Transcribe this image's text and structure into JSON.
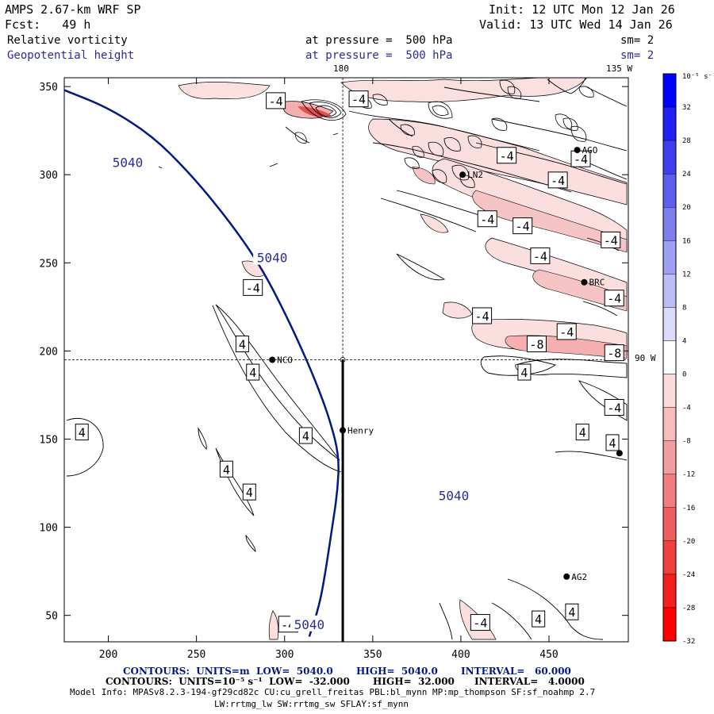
{
  "header": {
    "model": "AMPS 2.67-km WRF SP",
    "init": "Init: 12 UTC Mon 12 Jan 26",
    "fcst": "Fcst:   49 h",
    "valid": "Valid: 13 UTC Wed 14 Jan 26",
    "field1_name": "Relative vorticity",
    "field1_level": "at pressure =  500 hPa",
    "field1_sm": "sm= 2",
    "field2_name": "Geopotential height",
    "field2_level": "at pressure =  500 hPa",
    "field2_sm": "sm= 2"
  },
  "map_labels": {
    "lon_180": "180",
    "lon_135w": "135 W",
    "lon_90w": "90 W"
  },
  "colorbar": {
    "unit": "10⁻⁵ s⁻¹",
    "ticks": [
      32,
      28,
      24,
      20,
      16,
      12,
      8,
      4,
      0,
      -4,
      -8,
      -12,
      -16,
      -20,
      -24,
      -28,
      -32
    ],
    "colors": [
      "#0000ff",
      "#1f1ff6",
      "#3f3ff0",
      "#5e5eec",
      "#7e7eee",
      "#9e9ef2",
      "#bcbcf6",
      "#dadafb",
      "#ffffff",
      "#fbdada",
      "#f7bcbc",
      "#f39e9e",
      "#f07e7e",
      "#ee5e5e",
      "#f03f3f",
      "#f61f1f",
      "#ff0000"
    ]
  },
  "stations": [
    {
      "name": "AGO",
      "x": 466,
      "y": 314
    },
    {
      "name": "LN2",
      "x": 401,
      "y": 300
    },
    {
      "name": "BRC",
      "x": 470,
      "y": 239
    },
    {
      "name": "NCO",
      "x": 293,
      "y": 195
    },
    {
      "name": "Henry",
      "x": 333,
      "y": 155
    },
    {
      "name": "AG2",
      "x": 460,
      "y": 72
    },
    {
      "name": "",
      "x": 490,
      "y": 142
    }
  ],
  "chart_data": {
    "type": "contour",
    "xlim": [
      175,
      495
    ],
    "ylim": [
      35,
      355
    ],
    "xticks": [
      200,
      250,
      300,
      350,
      400,
      450
    ],
    "yticks": [
      50,
      100,
      150,
      200,
      250,
      300,
      350
    ],
    "crosshair": {
      "x": 333,
      "y": 195
    },
    "height_contour": {
      "level": "5040",
      "points": [
        [
          175,
          348
        ],
        [
          200,
          338
        ],
        [
          225,
          322
        ],
        [
          245,
          302
        ],
        [
          262,
          282
        ],
        [
          277,
          262
        ],
        [
          288,
          245
        ],
        [
          298,
          226
        ],
        [
          308,
          205
        ],
        [
          318,
          182
        ],
        [
          326,
          160
        ],
        [
          331,
          140
        ],
        [
          330,
          120
        ],
        [
          327,
          100
        ],
        [
          324,
          80
        ],
        [
          321,
          62
        ],
        [
          318,
          50
        ],
        [
          314,
          38
        ]
      ],
      "labels": [
        {
          "text": "5040",
          "x": 211,
          "y": 307
        },
        {
          "text": "5040",
          "x": 293,
          "y": 253
        },
        {
          "text": "5040",
          "x": 396,
          "y": 118
        },
        {
          "text": "5040",
          "x": 314,
          "y": 45
        }
      ]
    },
    "vorticity_labels": [
      {
        "text": "-4",
        "x": 295,
        "y": 342
      },
      {
        "text": "-4",
        "x": 342,
        "y": 343
      },
      {
        "text": "-4",
        "x": 426,
        "y": 311
      },
      {
        "text": "-4",
        "x": 468,
        "y": 309
      },
      {
        "text": "-4",
        "x": 455,
        "y": 297
      },
      {
        "text": "-4",
        "x": 415,
        "y": 275
      },
      {
        "text": "-4",
        "x": 435,
        "y": 271
      },
      {
        "text": "-4",
        "x": 485,
        "y": 263
      },
      {
        "text": "-4",
        "x": 445,
        "y": 254
      },
      {
        "text": "-4",
        "x": 282,
        "y": 236
      },
      {
        "text": "-4",
        "x": 487,
        "y": 230
      },
      {
        "text": "-4",
        "x": 412,
        "y": 220
      },
      {
        "text": "-4",
        "x": 460,
        "y": 211
      },
      {
        "text": "-8",
        "x": 443,
        "y": 204
      },
      {
        "text": "-8",
        "x": 487,
        "y": 199
      },
      {
        "text": "4",
        "x": 276,
        "y": 204
      },
      {
        "text": "4",
        "x": 282,
        "y": 188
      },
      {
        "text": "4",
        "x": 436,
        "y": 188
      },
      {
        "text": "-4",
        "x": 487,
        "y": 168
      },
      {
        "text": "4",
        "x": 185,
        "y": 154
      },
      {
        "text": "4",
        "x": 312,
        "y": 152
      },
      {
        "text": "4",
        "x": 469,
        "y": 154
      },
      {
        "text": "4",
        "x": 486,
        "y": 148
      },
      {
        "text": "4",
        "x": 267,
        "y": 133
      },
      {
        "text": "4",
        "x": 280,
        "y": 120
      },
      {
        "text": "-4",
        "x": 302,
        "y": 45
      },
      {
        "text": "-4",
        "x": 411,
        "y": 46
      },
      {
        "text": "4",
        "x": 444,
        "y": 48
      },
      {
        "text": "4",
        "x": 463,
        "y": 52
      }
    ]
  },
  "footer": {
    "contours1": "CONTOURS:  UNITS=m  LOW=  5040.0       HIGH=  5040.0       INTERVAL=   60.000",
    "contours2": "CONTOURS:  UNITS=10⁻⁵ s⁻¹  LOW=  -32.000       HIGH=  32.000      INTERVAL=   4.0000",
    "model_info": "Model Info: MPASv8.2.3-194-gf29cd82c CU:cu_grell_freitas PBL:bl_mynn MP:mp_thompson SF:sf_noahmp 2.7",
    "model_info2": "LW:rrtmg_lw SW:rrtmg_sw SFLAY:sf_mynn"
  }
}
